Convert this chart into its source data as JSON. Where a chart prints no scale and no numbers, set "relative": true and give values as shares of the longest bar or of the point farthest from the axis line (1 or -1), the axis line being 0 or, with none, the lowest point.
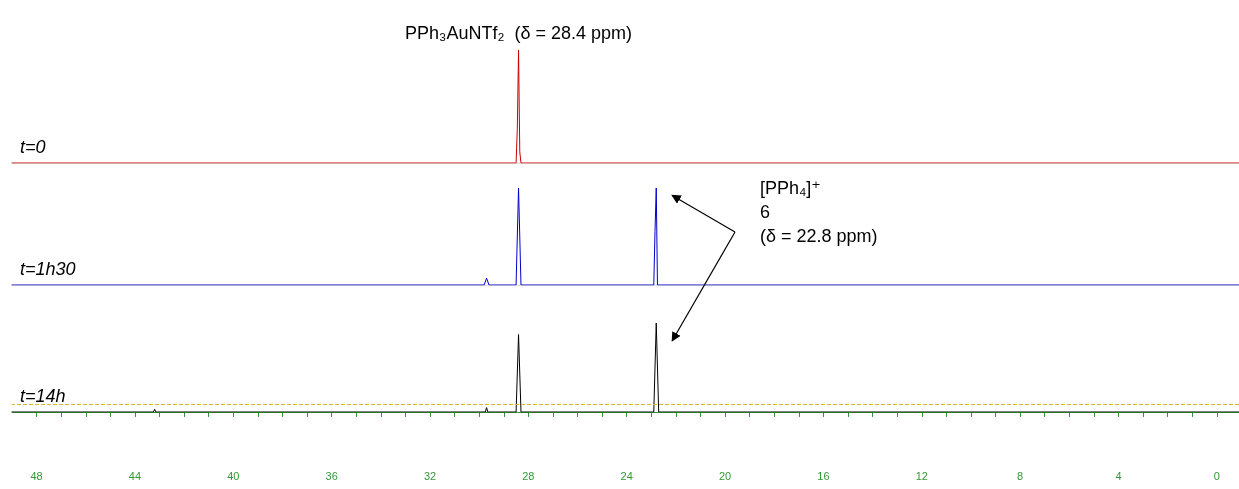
{
  "chart_data": [
    {
      "type": "line",
      "relative": true,
      "xlim": [
        49,
        -0.9
      ],
      "tick_labels": false,
      "grid": false,
      "legend": false,
      "marker": "none",
      "line_style": "solid",
      "annotations": [
        {
          "text": "PPh₃AuNTf₂  (δ = 28.4 ppm)",
          "x": 28.4,
          "y": 1
        }
      ],
      "series": [
        {
          "name": "t=0",
          "color": "#cc0000",
          "x": [
            49,
            28.5,
            28.45,
            28.4,
            28.35,
            28.3,
            -0.9
          ],
          "values": [
            0,
            0,
            0.3,
            1,
            0.1,
            0,
            0
          ]
        }
      ]
    },
    {
      "type": "line",
      "relative": true,
      "xlim": [
        49,
        -0.9
      ],
      "tick_labels": false,
      "grid": false,
      "legend": false,
      "marker": "none",
      "line_style": "solid",
      "annotations": [
        "[PPh₄]⁺\n6\n(δ = 22.8 ppm)"
      ],
      "series": [
        {
          "name": "t=1h30",
          "color": "#0000cc",
          "x": [
            49,
            29.8,
            29.7,
            29.6,
            28.5,
            28.4,
            28.3,
            22.9,
            22.85,
            22.8,
            22.75,
            -0.9
          ],
          "values": [
            0,
            0,
            0.07,
            0,
            0,
            1,
            0,
            0,
            0.55,
            1,
            0,
            0
          ]
        }
      ]
    },
    {
      "type": "line",
      "relative": true,
      "xlim": [
        49,
        -0.9
      ],
      "xticks": [
        48,
        {
          "value": 47,
          "label": null
        },
        {
          "value": 46,
          "label": null
        },
        {
          "value": 45,
          "label": null
        },
        44,
        {
          "value": 43,
          "label": null
        },
        {
          "value": 42,
          "label": null
        },
        {
          "value": 41,
          "label": null
        },
        40,
        {
          "value": 39,
          "label": null
        },
        {
          "value": 38,
          "label": null
        },
        {
          "value": 37,
          "label": null
        },
        36,
        {
          "value": 35,
          "label": null
        },
        {
          "value": 34,
          "label": null
        },
        {
          "value": 33,
          "label": null
        },
        32,
        {
          "value": 31,
          "label": null
        },
        {
          "value": 30,
          "label": null
        },
        {
          "value": 29,
          "label": null
        },
        28,
        {
          "value": 27,
          "label": null
        },
        {
          "value": 26,
          "label": null
        },
        {
          "value": 25,
          "label": null
        },
        24,
        {
          "value": 23,
          "label": null
        },
        {
          "value": 22,
          "label": null
        },
        {
          "value": 21,
          "label": null
        },
        20,
        {
          "value": 19,
          "label": null
        },
        {
          "value": 18,
          "label": null
        },
        {
          "value": 17,
          "label": null
        },
        16,
        {
          "value": 15,
          "label": null
        },
        {
          "value": 14,
          "label": null
        },
        {
          "value": 13,
          "label": null
        },
        12,
        {
          "value": 11,
          "label": null
        },
        {
          "value": 10,
          "label": null
        },
        {
          "value": 9,
          "label": null
        },
        8,
        {
          "value": 7,
          "label": null
        },
        {
          "value": 6,
          "label": null
        },
        {
          "value": 5,
          "label": null
        },
        4,
        {
          "value": 3,
          "label": null
        },
        {
          "value": 2,
          "label": null
        },
        {
          "value": 1,
          "label": null
        },
        0
      ],
      "tick_labels": "x",
      "grid": false,
      "legend": false,
      "marker": "none",
      "line_style": "solid",
      "ref_lines": [
        {
          "axis": "y",
          "value": 0.09,
          "label": null,
          "color": "#d4b830",
          "line_style": "dashed"
        }
      ],
      "series": [
        {
          "name": "t=14h",
          "color": "#000000",
          "x": [
            49,
            43.25,
            43.2,
            43.15,
            29.75,
            29.7,
            29.65,
            28.5,
            28.4,
            28.3,
            22.9,
            22.8,
            22.7,
            -0.9
          ],
          "values": [
            0,
            0,
            0.03,
            0,
            0,
            0.05,
            0,
            0,
            0.87,
            0,
            0,
            1,
            0,
            0
          ]
        }
      ]
    }
  ]
}
